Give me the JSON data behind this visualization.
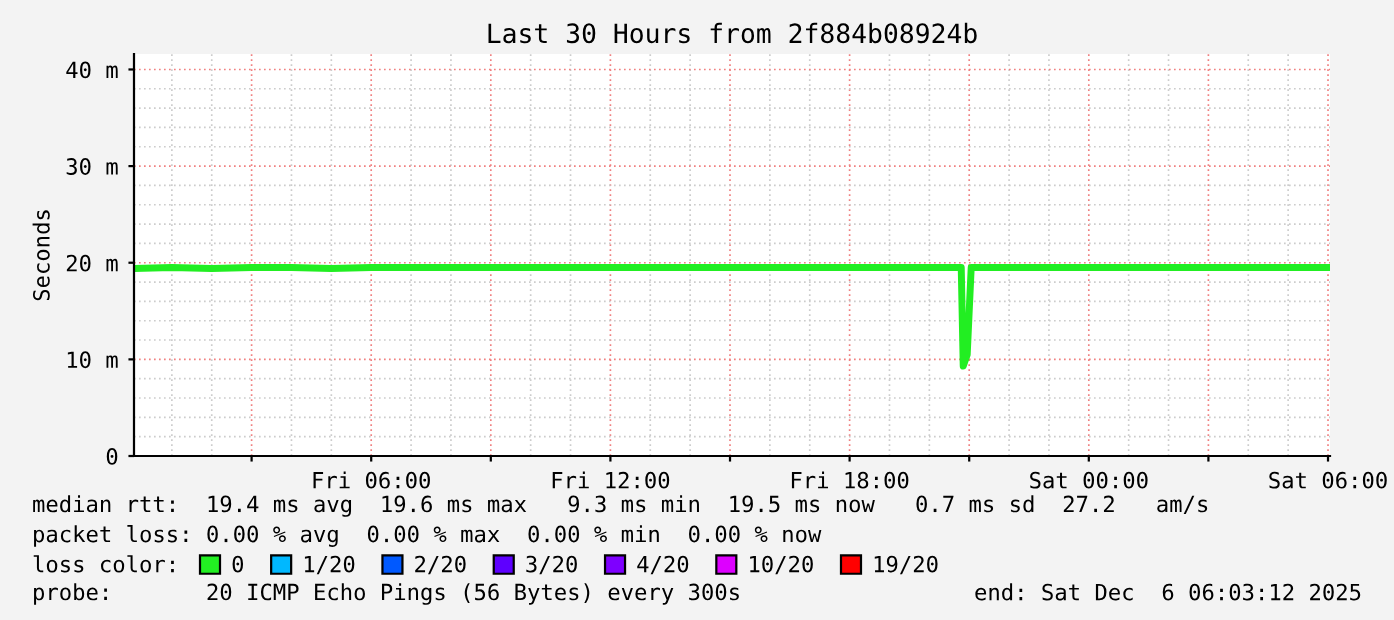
{
  "chart_data": {
    "type": "line",
    "title": "Last 30 Hours from 2f884b08924b",
    "ylabel": "Seconds",
    "x": [
      "2025-12-05T00:03",
      "2025-12-05T01:00",
      "2025-12-05T02:00",
      "2025-12-05T03:00",
      "2025-12-05T04:00",
      "2025-12-05T05:00",
      "2025-12-05T06:00",
      "2025-12-05T07:00",
      "2025-12-05T08:00",
      "2025-12-05T09:00",
      "2025-12-05T10:00",
      "2025-12-05T11:00",
      "2025-12-05T12:00",
      "2025-12-05T13:00",
      "2025-12-05T14:00",
      "2025-12-05T15:00",
      "2025-12-05T16:00",
      "2025-12-05T17:00",
      "2025-12-05T18:00",
      "2025-12-05T19:00",
      "2025-12-05T20:00",
      "2025-12-05T20:48",
      "2025-12-05T20:51",
      "2025-12-05T20:57",
      "2025-12-05T21:03",
      "2025-12-05T22:00",
      "2025-12-05T23:00",
      "2025-12-06T00:00",
      "2025-12-06T01:00",
      "2025-12-06T02:00",
      "2025-12-06T03:00",
      "2025-12-06T04:00",
      "2025-12-06T05:00",
      "2025-12-06T06:03"
    ],
    "series": [
      {
        "name": "0",
        "color": "#22ee22",
        "values": [
          19.4,
          19.5,
          19.4,
          19.5,
          19.5,
          19.4,
          19.5,
          19.5,
          19.5,
          19.5,
          19.5,
          19.5,
          19.5,
          19.5,
          19.5,
          19.5,
          19.5,
          19.5,
          19.5,
          19.5,
          19.5,
          19.5,
          9.3,
          10.5,
          19.5,
          19.5,
          19.5,
          19.5,
          19.5,
          19.5,
          19.5,
          19.5,
          19.5,
          19.5
        ]
      },
      {
        "name": "1/20",
        "color": "#00b8ff",
        "values": [
          null,
          null,
          null,
          null,
          null,
          null,
          null,
          null,
          null,
          null,
          null,
          null,
          null,
          null,
          null,
          null,
          null,
          null,
          null,
          null,
          null,
          null,
          null,
          null,
          null,
          null,
          null,
          null,
          null,
          null,
          null,
          null,
          null,
          null
        ]
      },
      {
        "name": "2/20",
        "color": "#0059ff",
        "values": [
          null,
          null,
          null,
          null,
          null,
          null,
          null,
          null,
          null,
          null,
          null,
          null,
          null,
          null,
          null,
          null,
          null,
          null,
          null,
          null,
          null,
          null,
          null,
          null,
          null,
          null,
          null,
          null,
          null,
          null,
          null,
          null,
          null,
          null
        ]
      },
      {
        "name": "3/20",
        "color": "#5e00ff",
        "values": [
          null,
          null,
          null,
          null,
          null,
          null,
          null,
          null,
          null,
          null,
          null,
          null,
          null,
          null,
          null,
          null,
          null,
          null,
          null,
          null,
          null,
          null,
          null,
          null,
          null,
          null,
          null,
          null,
          null,
          null,
          null,
          null,
          null,
          null
        ]
      },
      {
        "name": "4/20",
        "color": "#7e00ff",
        "values": [
          null,
          null,
          null,
          null,
          null,
          null,
          null,
          null,
          null,
          null,
          null,
          null,
          null,
          null,
          null,
          null,
          null,
          null,
          null,
          null,
          null,
          null,
          null,
          null,
          null,
          null,
          null,
          null,
          null,
          null,
          null,
          null,
          null,
          null
        ]
      },
      {
        "name": "10/20",
        "color": "#dd00ff",
        "values": [
          null,
          null,
          null,
          null,
          null,
          null,
          null,
          null,
          null,
          null,
          null,
          null,
          null,
          null,
          null,
          null,
          null,
          null,
          null,
          null,
          null,
          null,
          null,
          null,
          null,
          null,
          null,
          null,
          null,
          null,
          null,
          null,
          null,
          null
        ]
      },
      {
        "name": "19/20",
        "color": "#ff0000",
        "values": [
          null,
          null,
          null,
          null,
          null,
          null,
          null,
          null,
          null,
          null,
          null,
          null,
          null,
          null,
          null,
          null,
          null,
          null,
          null,
          null,
          null,
          null,
          null,
          null,
          null,
          null,
          null,
          null,
          null,
          null,
          null,
          null,
          null,
          null
        ]
      }
    ],
    "xlim": [
      "2025-12-05T00:03",
      "2025-12-06T06:03"
    ],
    "xticks": [
      {
        "value": "2025-12-05T03:00",
        "label": null
      },
      {
        "value": "2025-12-05T06:00",
        "label": "Fri 06:00"
      },
      {
        "value": "2025-12-05T09:00",
        "label": null
      },
      {
        "value": "2025-12-05T12:00",
        "label": "Fri 12:00"
      },
      {
        "value": "2025-12-05T15:00",
        "label": null
      },
      {
        "value": "2025-12-05T18:00",
        "label": "Fri 18:00"
      },
      {
        "value": "2025-12-05T21:00",
        "label": null
      },
      {
        "value": "2025-12-06T00:00",
        "label": "Sat 00:00"
      },
      {
        "value": "2025-12-06T03:00",
        "label": null
      },
      {
        "value": "2025-12-06T06:00",
        "label": "Sat 06:00"
      }
    ],
    "ylim": [
      0,
      41.6
    ],
    "yticks": [
      0,
      {
        "value": 10,
        "label": "10 m"
      },
      {
        "value": 20,
        "label": "20 m"
      },
      {
        "value": 30,
        "label": "30 m"
      },
      {
        "value": 40,
        "label": "40 m"
      }
    ],
    "grid": true,
    "legend": "bottom",
    "legend_title": "loss color:",
    "marker": "none",
    "line_style": "solid",
    "annotations": [
      "median rtt:  19.4 ms avg  19.6 ms max   9.3 ms min  19.5 ms now   0.7 ms sd  27.2   am/s",
      "packet loss: 0.00 % avg  0.00 % max  0.00 % min  0.00 % now",
      "probe:       20 ICMP Echo Pings (56 Bytes) every 300s",
      "end: Sat Dec  6 06:03:12 2025"
    ]
  }
}
